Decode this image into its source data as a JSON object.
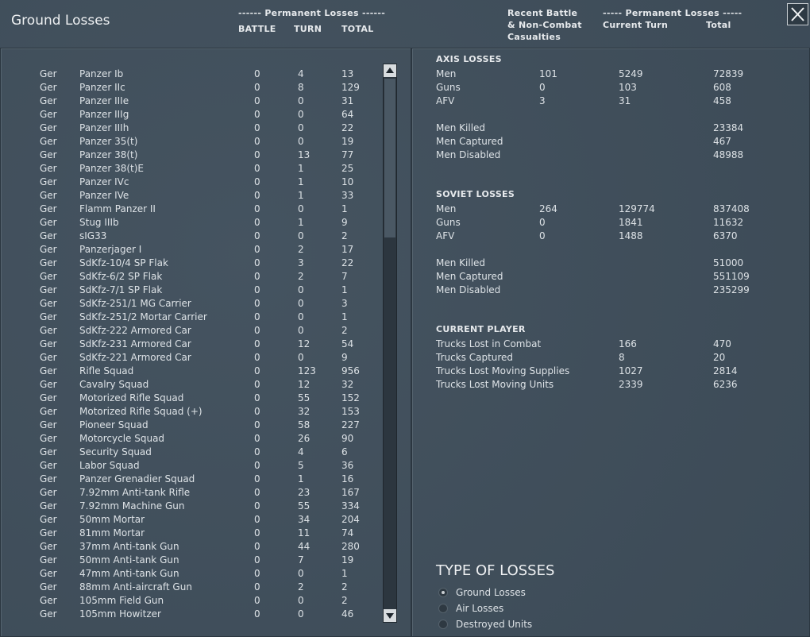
{
  "header": {
    "title": "Ground Losses",
    "left_group": "------ Permanent Losses ------",
    "left_columns": [
      "BATTLE",
      "TURN",
      "TOTAL"
    ],
    "right_recent": [
      "Recent Battle",
      "& Non-Combat",
      "Casualties"
    ],
    "right_group": "----- Permanent Losses -----",
    "right_columns": [
      "Current Turn",
      "Total"
    ]
  },
  "unit_list": {
    "rows": [
      [
        "Ger",
        "Panzer Ib",
        0,
        4,
        13
      ],
      [
        "Ger",
        "Panzer IIc",
        0,
        8,
        129
      ],
      [
        "Ger",
        "Panzer IIIe",
        0,
        0,
        31
      ],
      [
        "Ger",
        "Panzer IIIg",
        0,
        0,
        64
      ],
      [
        "Ger",
        "Panzer IIIh",
        0,
        0,
        22
      ],
      [
        "Ger",
        "Panzer 35(t)",
        0,
        0,
        19
      ],
      [
        "Ger",
        "Panzer 38(t)",
        0,
        13,
        77
      ],
      [
        "Ger",
        "Panzer 38(t)E",
        0,
        1,
        25
      ],
      [
        "Ger",
        "Panzer IVc",
        0,
        1,
        10
      ],
      [
        "Ger",
        "Panzer IVe",
        0,
        1,
        33
      ],
      [
        "Ger",
        "Flamm Panzer II",
        0,
        0,
        1
      ],
      [
        "Ger",
        "Stug IIIb",
        0,
        1,
        9
      ],
      [
        "Ger",
        "sIG33",
        0,
        0,
        2
      ],
      [
        "Ger",
        "Panzerjager I",
        0,
        2,
        17
      ],
      [
        "Ger",
        "SdKfz-10/4 SP Flak",
        0,
        3,
        22
      ],
      [
        "Ger",
        "SdKfz-6/2 SP Flak",
        0,
        2,
        7
      ],
      [
        "Ger",
        "SdKfz-7/1 SP Flak",
        0,
        0,
        1
      ],
      [
        "Ger",
        "SdKfz-251/1 MG Carrier",
        0,
        0,
        3
      ],
      [
        "Ger",
        "SdKfz-251/2 Mortar Carrier",
        0,
        0,
        1
      ],
      [
        "Ger",
        "SdKfz-222 Armored Car",
        0,
        0,
        2
      ],
      [
        "Ger",
        "SdKfz-231 Armored Car",
        0,
        12,
        54
      ],
      [
        "Ger",
        "SdKfz-221 Armored Car",
        0,
        0,
        9
      ],
      [
        "Ger",
        "Rifle Squad",
        0,
        123,
        956
      ],
      [
        "Ger",
        "Cavalry Squad",
        0,
        12,
        32
      ],
      [
        "Ger",
        "Motorized Rifle Squad",
        0,
        55,
        152
      ],
      [
        "Ger",
        "Motorized Rifle Squad (+)",
        0,
        32,
        153
      ],
      [
        "Ger",
        "Pioneer Squad",
        0,
        58,
        227
      ],
      [
        "Ger",
        "Motorcycle Squad",
        0,
        26,
        90
      ],
      [
        "Ger",
        "Security Squad",
        0,
        4,
        6
      ],
      [
        "Ger",
        "Labor Squad",
        0,
        5,
        36
      ],
      [
        "Ger",
        "Panzer Grenadier Squad",
        0,
        1,
        16
      ],
      [
        "Ger",
        "7.92mm Anti-tank Rifle",
        0,
        23,
        167
      ],
      [
        "Ger",
        "7.92mm Machine Gun",
        0,
        55,
        334
      ],
      [
        "Ger",
        "50mm Mortar",
        0,
        34,
        204
      ],
      [
        "Ger",
        "81mm Mortar",
        0,
        11,
        74
      ],
      [
        "Ger",
        "37mm Anti-tank Gun",
        0,
        44,
        280
      ],
      [
        "Ger",
        "50mm Anti-tank Gun",
        0,
        7,
        19
      ],
      [
        "Ger",
        "47mm Anti-tank Gun",
        0,
        0,
        1
      ],
      [
        "Ger",
        "88mm Anti-aircraft Gun",
        0,
        2,
        2
      ],
      [
        "Ger",
        "105mm Field Gun",
        0,
        0,
        2
      ],
      [
        "Ger",
        "105mm Howitzer",
        0,
        0,
        46
      ]
    ]
  },
  "sections": [
    {
      "title": "AXIS LOSSES",
      "rows": [
        [
          "Men",
          101,
          5249,
          72839
        ],
        [
          "Guns",
          0,
          103,
          608
        ],
        [
          "AFV",
          3,
          31,
          458
        ]
      ],
      "breakdown": [
        [
          "Men Killed",
          23384
        ],
        [
          "Men Captured",
          467
        ],
        [
          "Men Disabled",
          48988
        ]
      ]
    },
    {
      "title": "SOVIET LOSSES",
      "rows": [
        [
          "Men",
          264,
          129774,
          837408
        ],
        [
          "Guns",
          0,
          1841,
          11632
        ],
        [
          "AFV",
          0,
          1488,
          6370
        ]
      ],
      "breakdown": [
        [
          "Men Killed",
          51000
        ],
        [
          "Men Captured",
          551109
        ],
        [
          "Men Disabled",
          235299
        ]
      ]
    }
  ],
  "current_player": {
    "title": "CURRENT PLAYER",
    "rows": [
      [
        "Trucks Lost in Combat",
        166,
        470
      ],
      [
        "Trucks Captured",
        8,
        20
      ],
      [
        "Trucks Lost Moving Supplies",
        1027,
        2814
      ],
      [
        "Trucks Lost Moving Units",
        2339,
        6236
      ]
    ]
  },
  "type_of_losses": {
    "title": "TYPE OF LOSSES",
    "options": [
      "Ground Losses",
      "Air Losses",
      "Destroyed Units"
    ],
    "selected_index": 0
  }
}
